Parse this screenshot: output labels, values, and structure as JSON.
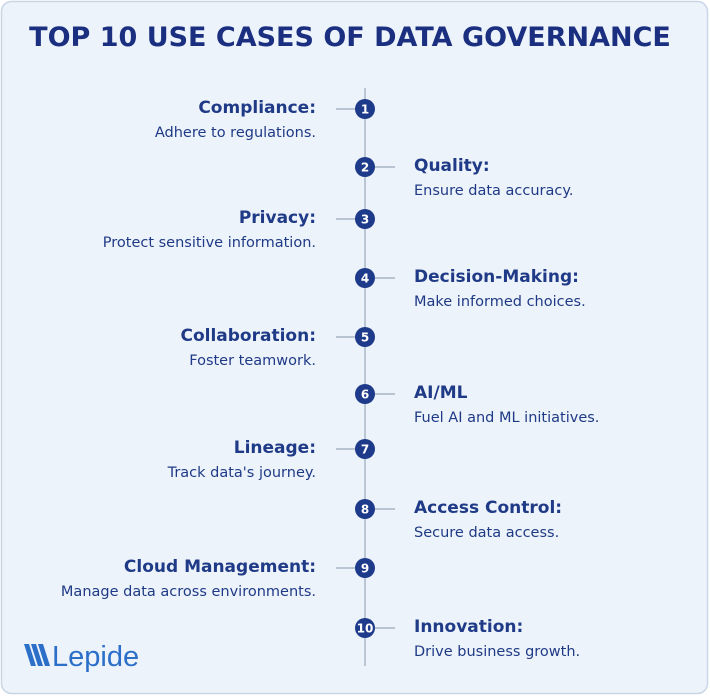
{
  "header": {
    "title": "TOP 10 USE CASES OF DATA GOVERNANCE"
  },
  "items": [
    {
      "number": 1,
      "title": "Compliance:",
      "description": "Adhere to regulations."
    },
    {
      "number": 2,
      "title": "Quality:",
      "description": "Ensure data accuracy."
    },
    {
      "number": 3,
      "title": "Privacy:",
      "description": "Protect sensitive information."
    },
    {
      "number": 4,
      "title": "Decision-Making:",
      "description": "Make informed choices."
    },
    {
      "number": 5,
      "title": "Collaboration:",
      "description": "Foster teamwork."
    },
    {
      "number": 6,
      "title": "AI/ML",
      "description": "Fuel AI and ML initiatives."
    },
    {
      "number": 7,
      "title": "Lineage:",
      "description": "Track data's journey."
    },
    {
      "number": 8,
      "title": "Access Control:",
      "description": "Secure data access."
    },
    {
      "number": 9,
      "title": "Cloud Management:",
      "description": "Manage data across environments."
    },
    {
      "number": 10,
      "title": "Innovation:",
      "description": "Drive business growth."
    }
  ],
  "logo": {
    "text": "Lepide"
  }
}
